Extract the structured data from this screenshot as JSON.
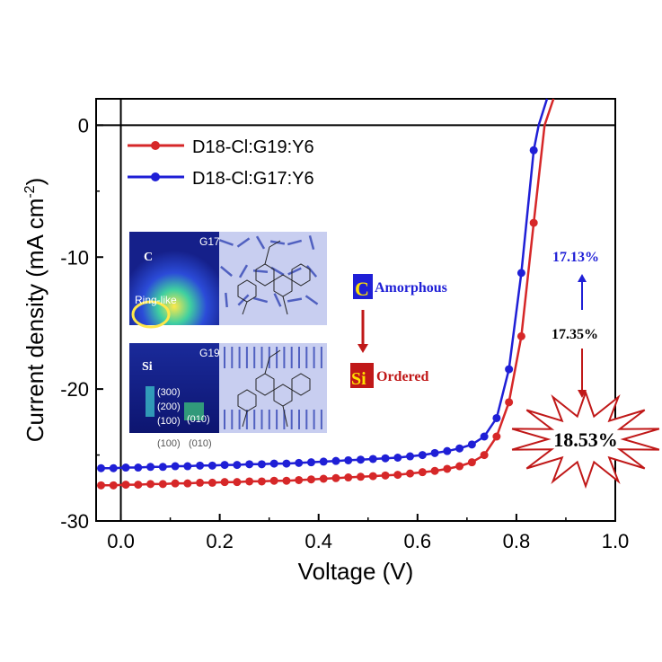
{
  "chart_data": {
    "type": "line",
    "xlabel": "Voltage (V)",
    "ylabel_main": "Current density (mA cm",
    "ylabel_sup": "-2",
    "ylabel_close": ")",
    "xlim": [
      -0.05,
      1.0
    ],
    "ylim": [
      -30,
      2
    ],
    "xticks": [
      0.0,
      0.2,
      0.4,
      0.6,
      0.8,
      1.0
    ],
    "xtick_labels": [
      "0.0",
      "0.2",
      "0.4",
      "0.6",
      "0.8",
      "1.0"
    ],
    "yticks": [
      0,
      -10,
      -20,
      -30
    ],
    "ytick_labels": [
      "0",
      "-10",
      "-20",
      "-30"
    ],
    "grid": false,
    "legend_position": "top-left",
    "series": [
      {
        "name": "D18-Cl:G19:Y6",
        "color": "#d62728",
        "x": [
          -0.04,
          -0.015,
          0.01,
          0.035,
          0.06,
          0.085,
          0.11,
          0.135,
          0.16,
          0.185,
          0.21,
          0.235,
          0.26,
          0.285,
          0.31,
          0.335,
          0.36,
          0.385,
          0.41,
          0.435,
          0.46,
          0.485,
          0.51,
          0.535,
          0.56,
          0.585,
          0.61,
          0.635,
          0.66,
          0.685,
          0.71,
          0.735,
          0.76,
          0.785,
          0.81,
          0.835,
          0.857
        ],
        "values": [
          -27.3,
          -27.3,
          -27.25,
          -27.25,
          -27.2,
          -27.2,
          -27.15,
          -27.15,
          -27.1,
          -27.1,
          -27.05,
          -27.05,
          -27.0,
          -27.0,
          -26.95,
          -26.95,
          -26.9,
          -26.85,
          -26.8,
          -26.75,
          -26.7,
          -26.65,
          -26.6,
          -26.55,
          -26.5,
          -26.4,
          -26.3,
          -26.2,
          -26.05,
          -25.85,
          -25.55,
          -25.0,
          -23.6,
          -21.0,
          -16.0,
          -7.4,
          0.0
        ]
      },
      {
        "name": "D18-Cl:G17:Y6",
        "color": "#1f1fd6",
        "x": [
          -0.04,
          -0.015,
          0.01,
          0.035,
          0.06,
          0.085,
          0.11,
          0.135,
          0.16,
          0.185,
          0.21,
          0.235,
          0.26,
          0.285,
          0.31,
          0.335,
          0.36,
          0.385,
          0.41,
          0.435,
          0.46,
          0.485,
          0.51,
          0.535,
          0.56,
          0.585,
          0.61,
          0.635,
          0.66,
          0.685,
          0.71,
          0.735,
          0.76,
          0.785,
          0.81,
          0.835,
          0.845
        ],
        "values": [
          -26.0,
          -26.0,
          -25.95,
          -25.95,
          -25.9,
          -25.9,
          -25.85,
          -25.85,
          -25.8,
          -25.8,
          -25.75,
          -25.75,
          -25.7,
          -25.7,
          -25.65,
          -25.65,
          -25.6,
          -25.55,
          -25.5,
          -25.45,
          -25.4,
          -25.35,
          -25.3,
          -25.25,
          -25.2,
          -25.1,
          -25.0,
          -24.85,
          -24.7,
          -24.5,
          -24.2,
          -23.6,
          -22.2,
          -18.5,
          -11.2,
          -1.9,
          0.0
        ]
      }
    ],
    "annotations": {
      "G17_label": "G17",
      "G19_label": "G19",
      "C_label": "C",
      "ringlike_label": "Ring-like",
      "Si_label": "Si",
      "peak_300": "(300)",
      "peak_200": "(200)",
      "peak_100": "(100)",
      "peak_010": "(010)",
      "bottom_100": "(100)",
      "bottom_010": "(010)",
      "amorphous_letter": "C",
      "amorphous_text": "Amorphous",
      "ordered_letter": "Si",
      "ordered_text": "Ordered",
      "pce_g17": "17.13%",
      "pce_mid": "17.35%",
      "pce_g19": "18.53%"
    }
  },
  "colors": {
    "red": "#d62728",
    "blue": "#1f1fd6",
    "dark_red": "#c01818",
    "yellow": "#ffe000",
    "inset_blue": "#2f3f9a",
    "inset_light": "#c8cef0"
  }
}
